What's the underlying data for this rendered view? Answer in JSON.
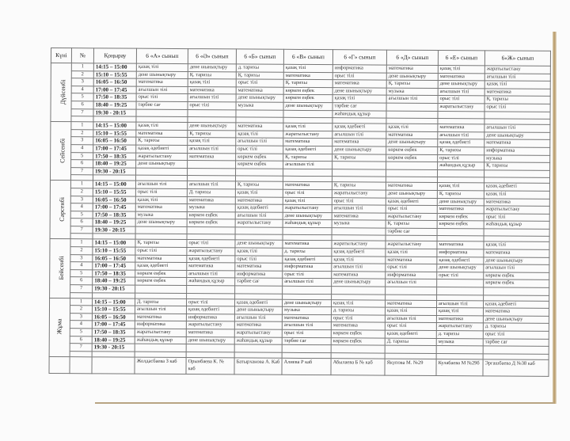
{
  "header": {
    "day": "Күні",
    "num": "№",
    "bell": "Қоңырау",
    "classes": [
      "6 «А» сынып",
      "6 «Ә» сынып",
      "6 «Б» сынып",
      "6 «В» сынып",
      "6 «Г» сынып",
      "6 «Д» сынып",
      "6 «Е» сынып",
      "6«Ж» сынып"
    ]
  },
  "times": [
    "14:15 – 15:00",
    "15:10 – 15:55",
    "16:05 – 16:50",
    "17:00 – 17:45",
    "17:50 – 18:35",
    "18:40 – 19:25",
    "19:30 - 20:15"
  ],
  "days": [
    {
      "name": "Дүйсенбі",
      "rows": [
        [
          "қазақ тілі",
          "дене шынықтыру",
          "д. тарихы",
          "қазақ тілі",
          "информатика",
          "математика",
          "қазақ тілі",
          "жаратылыстану"
        ],
        [
          "дене шынықтыру",
          "Қ. тарихы",
          "Қ. тарихы",
          "математика",
          "орыс тілі",
          "дене шынықтыру",
          "математика",
          "ағылшын тілі"
        ],
        [
          "математика",
          "қазақ тілі",
          "орыс тілі",
          "Қ. тарихы",
          "математика",
          "Қ. тарихы",
          "дене шынықтыру",
          "қазақ тілі"
        ],
        [
          "ағылшын тілі",
          "математика",
          "математика",
          "көркем еңбек",
          "дене шынықтыру",
          "музыка",
          "ағылшын тілі",
          "математика"
        ],
        [
          "орыс тілі",
          "ағылшын тілі",
          "дене шынықтыру",
          "көркем еңбек",
          "қазақ тілі",
          "ағылшын тілі",
          "орыс тілі",
          "Қ. тарихы"
        ],
        [
          "тәрбие сағ",
          "орыс тілі",
          "музыка",
          "дене шынықтыру",
          "тәрбие сағ",
          "",
          "жаратылыстану",
          "орыс тілі"
        ],
        [
          "",
          "",
          "",
          "",
          "жаһандық құзыр",
          "",
          "",
          ""
        ]
      ]
    },
    {
      "name": "Сейсенбі",
      "rows": [
        [
          "қазақ тілі",
          "дене шынықтыру",
          "математика",
          "қазақ тілі",
          "қазақ әдебиеті",
          "қазақ тілі",
          "математика",
          "ағылшын тілі"
        ],
        [
          "математика",
          "Қ. тарихы",
          "қазақ тілі",
          "жаратылыстану",
          "ағылшын тілі",
          "математика",
          "ағылшын тілі",
          "дене шынықтыру"
        ],
        [
          "Қ. тарихы",
          "қазақ тілі",
          "ағылшын тілі",
          "математика",
          "математика",
          "дене шынықтыру",
          "қазақ әдебиеті",
          "математика"
        ],
        [
          "қазақ әдебиеті",
          "ағылшын тілі",
          "орыс тілі",
          "қазақ әдебиеті",
          "дене шынықтыру",
          "көркем еңбек",
          "Қ. тарихы",
          "информатика"
        ],
        [
          "жаратылыстану",
          "математика",
          "көркем еңбек",
          "Қ. тарихы",
          "Қ. тарихы",
          "көркем еңбек",
          "орыс тілі",
          "музыка"
        ],
        [
          "дене шынықтыру",
          "",
          "көркем еңбек",
          "ағылшын тілі",
          "",
          "",
          "жаһандық құзыр",
          "Қ. тарихы"
        ],
        [
          "",
          "",
          "",
          "",
          "",
          "",
          "",
          ""
        ]
      ]
    },
    {
      "name": "Сәрсенбі",
      "rows": [
        [
          "ағылшын тілі",
          "ағылшын тілі",
          "Қ. тарихы",
          "математика",
          "Қ. тарихы",
          "математика",
          "қазақ тілі",
          "қазақ әдебиеті"
        ],
        [
          "орыс тілі",
          "Д. тарихы",
          "қазақ тілі",
          "орыс тілі",
          "жаратылыстану",
          "дене шынықтыру",
          "Қ. тарихы",
          "қазақ тілі"
        ],
        [
          "қазақ тілі",
          "математика",
          "математика",
          "қазақ тілі",
          "орыс тілі",
          "қазақ әдебиеті",
          "дене шынықтыру",
          "математика"
        ],
        [
          "математика",
          "музыка",
          "қазақ әдебиеті",
          "жаратылыстану",
          "ағылшын тілі",
          "орыс тілі",
          "математика",
          "жаратылыстану"
        ],
        [
          "музыка",
          "көркем еңбек",
          "ағылшын тілі",
          "дене шынықтыру",
          "математика",
          "жаратылыстану",
          "көркем еңбек",
          "орыс тілі"
        ],
        [
          "дене шынықтыру",
          "көркем еңбек",
          "жаратылыстану",
          "жаһандық құзыр",
          "музыка",
          "Қ. тарихы",
          "көркем еңбек",
          "жаһандық құзыр"
        ],
        [
          "",
          "",
          "",
          "",
          "",
          "тәрбие сағ",
          "",
          ""
        ]
      ]
    },
    {
      "name": "Бейсенбі",
      "rows": [
        [
          "Қ. тарихы",
          "орыс тілі",
          "дене шынықтыру",
          "математика",
          "жаратылыстану",
          "жаратылыстану",
          "математика",
          "қазақ тілі"
        ],
        [
          "орыс тілі",
          "жаратылыстану",
          "қазақ тілі",
          "д. тарихы",
          "қазақ әдебиеті",
          "қазақ тілі",
          "информатика",
          "математика"
        ],
        [
          "математика",
          "қазақ әдебиеті",
          "орыс тілі",
          "қазақ әдебиеті",
          "қазақ тілі",
          "математика",
          "қазақ әдебиеті",
          "дене шынықтыру"
        ],
        [
          "қазақ әдебиеті",
          "математика",
          "математика",
          "информатика",
          "ағылшын тілі",
          "орыс тілі",
          "дене шынықтыру",
          "ағылшын тілі"
        ],
        [
          "көркем еңбек",
          "ағылшын тілі",
          "информатика",
          "орыс тілі",
          "математика",
          "информатика",
          "орыс тілі",
          "көркем еңбек"
        ],
        [
          "көркем еңбек",
          "жаһандық құзыр",
          "тәрбие сағ",
          "ағылшын тілі",
          "дене шынықтыру",
          "ағылшын тілі",
          "",
          "көркем еңбек"
        ],
        [
          "",
          "",
          "",
          "",
          "",
          "",
          "",
          ""
        ]
      ]
    },
    {
      "name": "Жұма",
      "rows": [
        [
          "Д. тарихы",
          "орыс тілі",
          "қазақ әдебиеті",
          "дене шынықтыру",
          "қазақ тілі",
          "математика",
          "ағылшын тілі",
          "қазақ әдебиеті"
        ],
        [
          "ағылшын тілі",
          "қазақ әдебиеті",
          "дене шынықтыру",
          "музыка",
          "д. тарихы",
          "қазақ тілі",
          "қазақ тілі",
          "математика"
        ],
        [
          "математика",
          "информатика",
          "ағылшын тілі",
          "математика",
          "орыс тілі",
          "ағылшын тілі",
          "математика",
          "дене шынықтыру"
        ],
        [
          "информатика",
          "жаратылыстану",
          "математика",
          "ағылшын тілі",
          "математика",
          "орыс тілі",
          "жаратылыстану",
          "д. тарихы"
        ],
        [
          "жаратылыстану",
          "математика",
          "жаратылыстану",
          "орыс тілі",
          "көркем еңбек",
          "қазақ әдебиеті",
          "д. тарихы",
          "орыс тілі"
        ],
        [
          "жаһандық құзыр",
          "дене шынықтыру",
          "жаһандық құзыр",
          "тәрбие сағ",
          "көркем еңбек",
          "Д. тарихы",
          "музыка",
          "тәрбие сағ"
        ],
        [
          "",
          "",
          "",
          "",
          "",
          "",
          "",
          ""
        ]
      ]
    }
  ],
  "teachers": [
    "Жолдасбаева З каб",
    "Орынбаева К. № каб",
    "Батырханова А. Каб",
    "Алиева Р каб",
    "Абылаева Б № каб",
    "Якупова М. №29",
    "Кулабаева М №29б",
    "Эргашбаева Д №38 каб"
  ]
}
